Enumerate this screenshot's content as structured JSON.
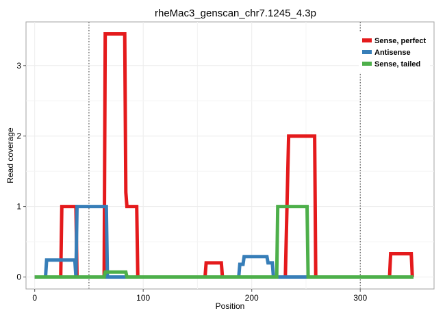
{
  "chart_data": {
    "type": "line",
    "title": "rheMac3_genscan_chr7.1245_4.3p",
    "xlabel": "Position",
    "ylabel": "Read coverage",
    "xlim": [
      -8,
      368
    ],
    "ylim": [
      -0.17,
      3.62
    ],
    "x_ticks": [
      0,
      100,
      200,
      300
    ],
    "y_ticks": [
      0,
      1,
      2,
      3
    ],
    "grid": true,
    "legend_position": "top-right",
    "vlines": [
      50,
      300
    ],
    "series": [
      {
        "name": "Sense, perfect",
        "color": "#e41a1c",
        "points": [
          [
            0,
            0
          ],
          [
            24,
            0
          ],
          [
            25,
            1
          ],
          [
            38,
            1
          ],
          [
            39,
            0
          ],
          [
            64,
            0
          ],
          [
            65,
            3.45
          ],
          [
            83,
            3.45
          ],
          [
            84,
            1.2
          ],
          [
            85,
            1
          ],
          [
            94,
            1
          ],
          [
            95,
            0
          ],
          [
            157,
            0
          ],
          [
            158,
            0.2
          ],
          [
            172,
            0.2
          ],
          [
            173,
            0
          ],
          [
            231,
            0
          ],
          [
            234,
            2
          ],
          [
            258,
            2
          ],
          [
            259,
            0
          ],
          [
            327,
            0
          ],
          [
            328,
            0.33
          ],
          [
            347,
            0.33
          ],
          [
            348,
            0
          ],
          [
            349,
            0
          ]
        ]
      },
      {
        "name": "Antisense",
        "color": "#377eb8",
        "points": [
          [
            0,
            0
          ],
          [
            10,
            0
          ],
          [
            11,
            0.24
          ],
          [
            37,
            0.24
          ],
          [
            38,
            0
          ],
          [
            39,
            1
          ],
          [
            66,
            1
          ],
          [
            67,
            0
          ],
          [
            188,
            0
          ],
          [
            189,
            0.18
          ],
          [
            192,
            0.18
          ],
          [
            193,
            0.29
          ],
          [
            214,
            0.29
          ],
          [
            215,
            0.2
          ],
          [
            219,
            0.2
          ],
          [
            220,
            0
          ],
          [
            349,
            0
          ]
        ]
      },
      {
        "name": "Sense, tailed",
        "color": "#4daf4a",
        "points": [
          [
            0,
            0
          ],
          [
            64,
            0
          ],
          [
            65,
            0.07
          ],
          [
            84,
            0.07
          ],
          [
            85,
            0
          ],
          [
            223,
            0
          ],
          [
            224,
            1
          ],
          [
            251,
            1
          ],
          [
            252,
            0
          ],
          [
            349,
            0
          ]
        ]
      }
    ]
  }
}
